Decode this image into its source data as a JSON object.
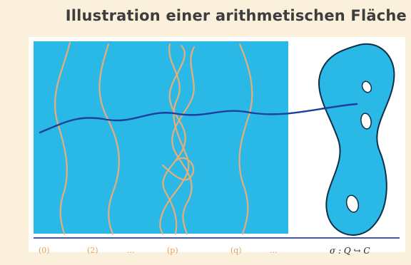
{
  "title": "Illustration einer arithmetischen Fläche",
  "diagram": {
    "labels": [
      "(0)",
      "(2)",
      "...",
      "(p)",
      "(q)",
      "...",
      "σ : Q ↪ C"
    ],
    "colors": {
      "background": "#fbf0db",
      "surface": "#2ab8e6",
      "fiber": "#e6ad78",
      "generic_fiber": "#1c3f9e",
      "outline": "#0e2f45",
      "baseline": "#2b3fa8"
    }
  }
}
